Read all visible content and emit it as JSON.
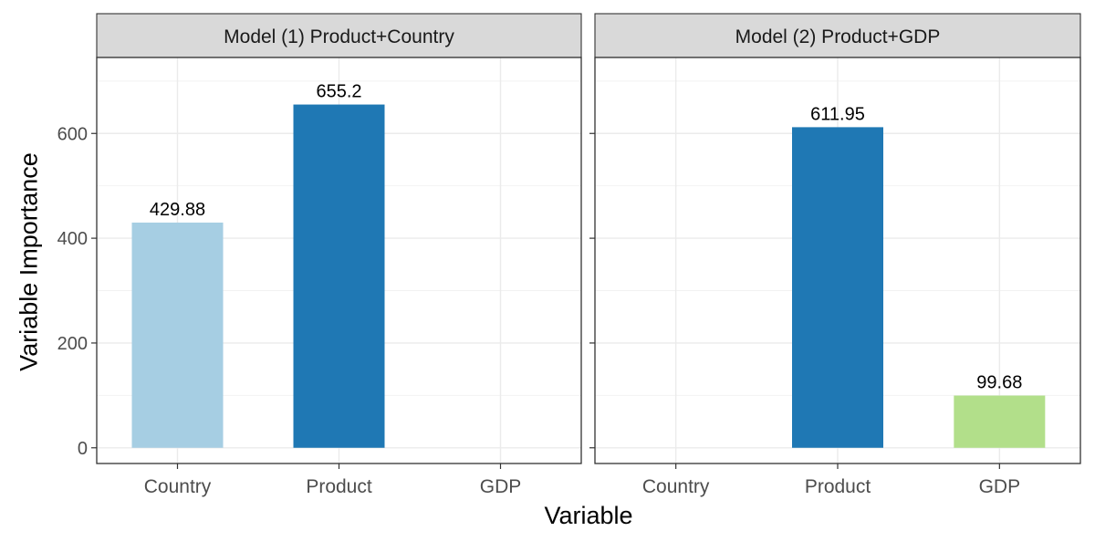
{
  "chart_data": {
    "type": "bar",
    "categories": [
      "Country",
      "Product",
      "GDP"
    ],
    "xlabel": "Variable",
    "ylabel": "Variable Importance",
    "ylim": [
      -30,
      745
    ],
    "yticks": [
      0,
      200,
      400,
      600
    ],
    "grid": true,
    "category_colors": {
      "Country": "#a6cee3",
      "Product": "#1f78b4",
      "GDP": "#b2df8a"
    },
    "panels": [
      {
        "title": "Model (1) Product+Country",
        "values": [
          429.88,
          655.2,
          null
        ],
        "labels": [
          "429.88",
          "655.2",
          ""
        ]
      },
      {
        "title": "Model (2) Product+GDP",
        "values": [
          null,
          611.95,
          99.68
        ],
        "labels": [
          "",
          "611.95",
          "99.68"
        ]
      }
    ]
  }
}
